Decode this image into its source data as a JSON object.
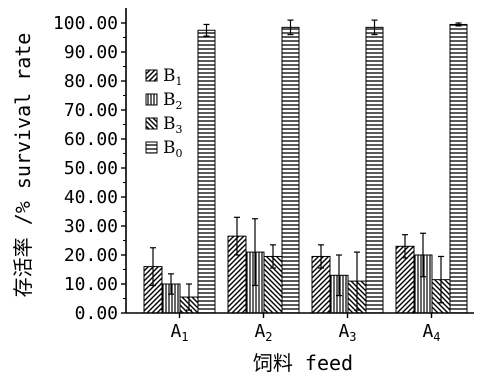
{
  "chart_data": {
    "type": "bar",
    "title": "",
    "xlabel": "饲料 feed",
    "ylabel": "存活率 /% survival rate",
    "ylim": [
      0,
      100
    ],
    "yticks": [
      "0.00",
      "10.00",
      "20.00",
      "30.00",
      "40.00",
      "50.00",
      "60.00",
      "70.00",
      "80.00",
      "90.00",
      "100.00"
    ],
    "categories": [
      {
        "main": "A",
        "sub": "1"
      },
      {
        "main": "A",
        "sub": "2"
      },
      {
        "main": "A",
        "sub": "3"
      },
      {
        "main": "A",
        "sub": "4"
      }
    ],
    "series": [
      {
        "name": "B",
        "sub": "1",
        "pattern": "diag-right",
        "values": [
          16,
          26.5,
          19.5,
          23
        ],
        "errors": [
          6.5,
          6.5,
          4,
          4
        ]
      },
      {
        "name": "B",
        "sub": "2",
        "pattern": "vertical",
        "values": [
          10,
          21,
          13,
          20
        ],
        "errors": [
          3.5,
          11.5,
          7,
          7.5
        ]
      },
      {
        "name": "B",
        "sub": "3",
        "pattern": "diag-left",
        "values": [
          5.5,
          19.5,
          11,
          11.5
        ],
        "errors": [
          4.5,
          4,
          10,
          8
        ]
      },
      {
        "name": "B",
        "sub": "0",
        "pattern": "horizontal",
        "values": [
          97.5,
          98.5,
          98.5,
          99.5
        ],
        "errors": [
          2,
          2.5,
          2.5,
          0.5
        ]
      }
    ],
    "legend_position": "top-left inside plot",
    "grid": false
  }
}
